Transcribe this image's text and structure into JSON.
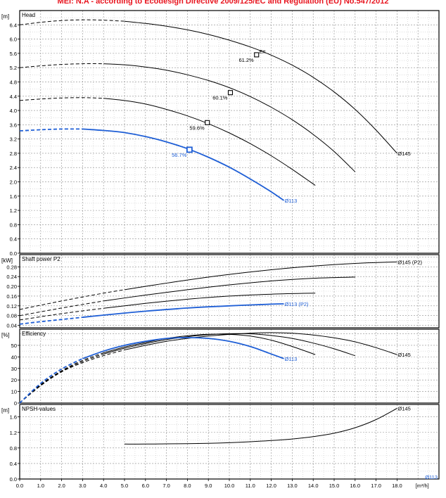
{
  "banner": "MEI: N.A - according to Ecodesign Directive 2009/125/EC and Regulation (EU) No.547/2012",
  "colors": {
    "black": "#000000",
    "blue": "#1f5fd6",
    "red": "#e8141e",
    "grid": "#9a9a9a"
  },
  "chart_data": [
    {
      "type": "line",
      "panel": "head",
      "title": "Head",
      "unit": "[m]",
      "ylim": [
        0,
        6.8
      ],
      "yticks": [
        0.0,
        0.4,
        0.8,
        1.2,
        1.6,
        2.0,
        2.4,
        2.8,
        3.2,
        3.6,
        4.0,
        4.4,
        4.8,
        5.2,
        5.6,
        6.0,
        6.4
      ],
      "ytick_labels": [
        "0.0",
        "0.4",
        "0.8",
        "1.2",
        "1.6",
        "2.0",
        "2.4",
        "2.8",
        "3.2",
        "3.6",
        "4.0",
        "4.4",
        "4.8",
        "5.2",
        "5.6",
        "6.0",
        "6.4"
      ],
      "series": [
        {
          "name": "Ø145",
          "color": "black",
          "dash_until": 5.0,
          "x": [
            0,
            1,
            2,
            3,
            4,
            5,
            6,
            7,
            8,
            9,
            10,
            11,
            12,
            13,
            14,
            15,
            16,
            17,
            18
          ],
          "y": [
            6.4,
            6.47,
            6.52,
            6.54,
            6.53,
            6.5,
            6.44,
            6.36,
            6.26,
            6.13,
            5.97,
            5.78,
            5.55,
            5.27,
            4.93,
            4.52,
            4.03,
            3.45,
            2.8
          ]
        },
        {
          "color": "black",
          "dash_until": 4.0,
          "x": [
            0,
            1,
            2,
            3,
            4,
            5,
            6,
            7,
            8,
            9,
            10,
            11,
            12,
            13,
            14,
            15,
            16
          ],
          "y": [
            5.2,
            5.25,
            5.29,
            5.31,
            5.31,
            5.28,
            5.22,
            5.13,
            5.0,
            4.84,
            4.64,
            4.39,
            4.09,
            3.74,
            3.33,
            2.85,
            2.28
          ]
        },
        {
          "color": "black",
          "dash_until": 4.0,
          "x": [
            0,
            1,
            2,
            3,
            4,
            5,
            6,
            7,
            8,
            9,
            10,
            11,
            12,
            13,
            14.1
          ],
          "y": [
            4.28,
            4.32,
            4.35,
            4.36,
            4.34,
            4.28,
            4.18,
            4.03,
            3.85,
            3.63,
            3.37,
            3.07,
            2.73,
            2.35,
            1.9
          ]
        },
        {
          "name": "Ø113",
          "color": "blue",
          "dash_until": 3.0,
          "x": [
            0,
            1,
            2,
            3,
            4,
            5,
            6,
            7,
            8,
            9,
            10,
            11,
            12,
            12.6
          ],
          "y": [
            3.43,
            3.46,
            3.48,
            3.48,
            3.44,
            3.38,
            3.27,
            3.12,
            2.93,
            2.69,
            2.41,
            2.08,
            1.72,
            1.48
          ]
        }
      ],
      "markers": [
        {
          "x": 11.3,
          "y": 5.56,
          "label": "61.2%",
          "extra": "E#",
          "color": "black"
        },
        {
          "x": 10.05,
          "y": 4.5,
          "label": "60.1%",
          "color": "black"
        },
        {
          "x": 8.95,
          "y": 3.66,
          "label": "59.6%",
          "color": "black"
        },
        {
          "x": 8.1,
          "y": 2.9,
          "label": "56.7%",
          "color": "blue"
        }
      ],
      "curve_labels": [
        {
          "text": "Ø145",
          "x": 18.0,
          "y": 2.8,
          "color": "black"
        },
        {
          "text": "Ø113",
          "x": 12.6,
          "y": 1.48,
          "color": "blue"
        }
      ]
    },
    {
      "type": "line",
      "panel": "power",
      "title": "Shaft power P2",
      "unit": "[kW]",
      "ylim": [
        0.03,
        0.33
      ],
      "yticks": [
        0.04,
        0.08,
        0.12,
        0.16,
        0.2,
        0.24,
        0.28
      ],
      "ytick_labels": [
        "0.04",
        "0.08",
        "0.12",
        "0.16",
        "0.20",
        "0.24",
        "0.28"
      ],
      "series": [
        {
          "name": "Ø145 (P2)",
          "color": "black",
          "dash_until": 5.0,
          "x": [
            0,
            2,
            4,
            5,
            6,
            8,
            10,
            12,
            14,
            16,
            18
          ],
          "y": [
            0.105,
            0.14,
            0.172,
            0.186,
            0.2,
            0.226,
            0.249,
            0.268,
            0.283,
            0.294,
            0.3
          ]
        },
        {
          "color": "black",
          "dash_until": 4.0,
          "x": [
            0,
            2,
            4,
            6,
            8,
            10,
            12,
            14,
            16
          ],
          "y": [
            0.08,
            0.111,
            0.14,
            0.164,
            0.186,
            0.206,
            0.222,
            0.233,
            0.238
          ]
        },
        {
          "color": "black",
          "dash_until": 4.0,
          "x": [
            0,
            2,
            4,
            6,
            8,
            10,
            12,
            14.1
          ],
          "y": [
            0.062,
            0.088,
            0.11,
            0.13,
            0.147,
            0.16,
            0.168,
            0.172
          ]
        },
        {
          "name": "Ø113 (P2)",
          "color": "blue",
          "dash_until": 3.0,
          "x": [
            0,
            1,
            2,
            3,
            4,
            6,
            8,
            10,
            12,
            12.6
          ],
          "y": [
            0.045,
            0.055,
            0.064,
            0.073,
            0.082,
            0.098,
            0.111,
            0.12,
            0.127,
            0.128
          ]
        }
      ],
      "curve_labels": [
        {
          "text": "Ø145 (P2)",
          "x": 18.0,
          "y": 0.3,
          "color": "black"
        },
        {
          "text": "Ø113 (P2)",
          "x": 12.6,
          "y": 0.128,
          "color": "blue"
        }
      ]
    },
    {
      "type": "line",
      "panel": "efficiency",
      "title": "Efficiency",
      "unit": "[%]",
      "ylim": [
        0,
        64
      ],
      "yticks": [
        0,
        10,
        20,
        30,
        40,
        50
      ],
      "ytick_labels": [
        "0",
        "10",
        "20",
        "30",
        "40",
        "50"
      ],
      "series": [
        {
          "name": "Ø145",
          "color": "black",
          "dash_until": 5.0,
          "x": [
            0,
            1,
            2,
            3,
            4,
            5,
            6,
            7,
            8,
            9,
            10,
            11,
            12,
            13,
            14,
            15,
            16,
            17,
            18
          ],
          "y": [
            0,
            15,
            27,
            35,
            41,
            46,
            50,
            53.5,
            56,
            58,
            59.5,
            60.5,
            61,
            60.5,
            59,
            56.5,
            53,
            48,
            42
          ]
        },
        {
          "color": "black",
          "dash_until": 4.0,
          "x": [
            0,
            1,
            2,
            3,
            4,
            5,
            6,
            7,
            8,
            9,
            10,
            11,
            12,
            13,
            14,
            15,
            16
          ],
          "y": [
            0,
            15.5,
            27.5,
            36,
            42.5,
            47.5,
            51.5,
            55,
            57.5,
            59.3,
            60.1,
            60,
            58.5,
            56,
            52,
            47,
            41
          ]
        },
        {
          "color": "black",
          "dash_until": 4.0,
          "x": [
            0,
            1,
            2,
            3,
            4,
            5,
            6,
            7,
            8,
            9,
            10,
            11,
            12,
            13,
            14.1
          ],
          "y": [
            0,
            16,
            28,
            37,
            43.5,
            48.5,
            52.5,
            56,
            58.3,
            59.6,
            59.5,
            58,
            54.5,
            49,
            42
          ]
        },
        {
          "name": "Ø113",
          "color": "blue",
          "dash_until": 3.0,
          "x": [
            0,
            1,
            2,
            3,
            4,
            5,
            6,
            7,
            8,
            9,
            10,
            11,
            12,
            12.6
          ],
          "y": [
            0,
            17,
            29.5,
            38.5,
            45,
            50,
            53.5,
            56,
            56.7,
            56,
            53.5,
            49,
            42.5,
            38.5
          ]
        }
      ],
      "curve_labels": [
        {
          "text": "Ø145",
          "x": 18.0,
          "y": 42,
          "color": "black"
        },
        {
          "text": "Ø113",
          "x": 12.6,
          "y": 38.5,
          "color": "blue"
        }
      ]
    },
    {
      "type": "line",
      "panel": "npsh",
      "title": "NPSH-values",
      "unit": "[m]",
      "ylim": [
        0,
        1.92
      ],
      "yticks": [
        0.0,
        0.4,
        0.8,
        1.2,
        1.6
      ],
      "ytick_labels": [
        "0.0",
        "0.4",
        "0.8",
        "1.2",
        "1.6"
      ],
      "series": [
        {
          "name": "Ø145",
          "color": "black",
          "dash_until": -1,
          "x": [
            5,
            6,
            7,
            8,
            9,
            10,
            11,
            12,
            13,
            14,
            15,
            16,
            17,
            18
          ],
          "y": [
            0.9,
            0.9,
            0.905,
            0.91,
            0.92,
            0.935,
            0.96,
            0.99,
            1.03,
            1.09,
            1.18,
            1.32,
            1.53,
            1.82
          ]
        }
      ],
      "curve_labels": [
        {
          "text": "Ø145",
          "x": 18.0,
          "y": 1.82,
          "color": "black"
        },
        {
          "text": "Ø113",
          "x": 20.0,
          "y": 0.05,
          "color": "blue"
        }
      ]
    }
  ],
  "x_axis": {
    "min": 0,
    "max": 20,
    "ticks": [
      "0.0",
      "1.0",
      "2.0",
      "3.0",
      "4.0",
      "5.0",
      "6.0",
      "7.0",
      "8.0",
      "9.0",
      "10.0",
      "11.0",
      "12.0",
      "13.0",
      "14.0",
      "15.0",
      "16.0",
      "17.0",
      "18.0"
    ],
    "unit": "[m³/h]"
  }
}
